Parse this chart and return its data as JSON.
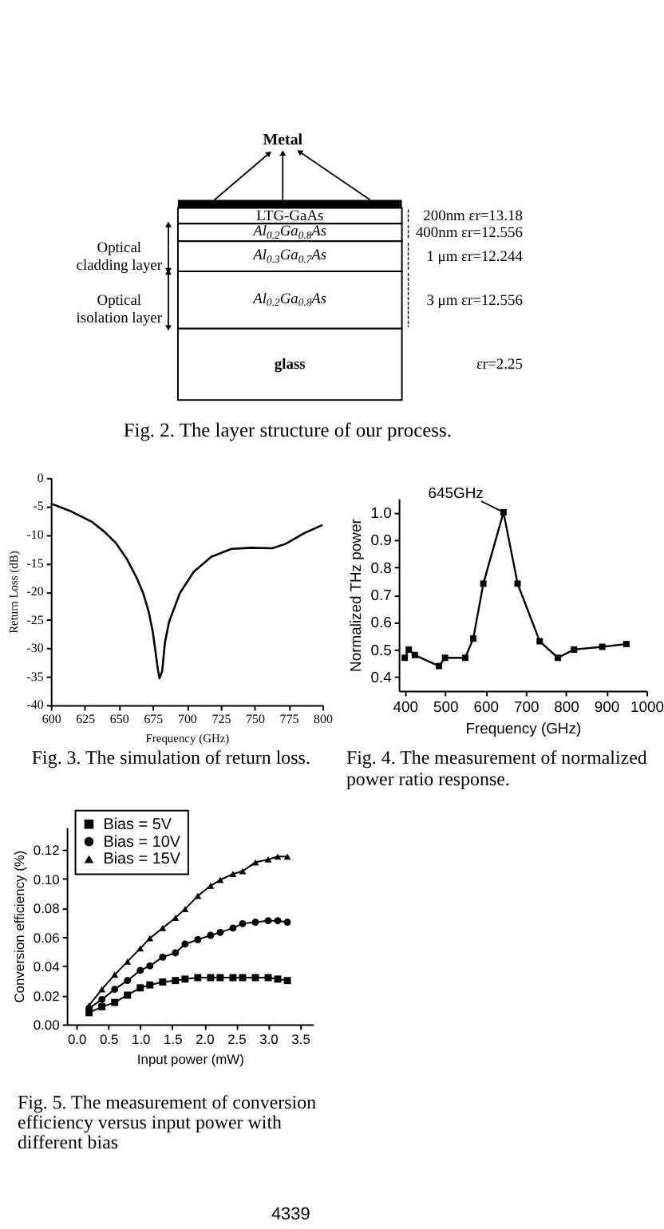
{
  "chart_data": [
    {
      "type": "other",
      "categories": [
        "Metal",
        "LTG-GaAs",
        "Al$_{0.2}$Ga$_{0.8}$As",
        "Al$_{0.3}$Ga$_{0.7}$As",
        "Al$_{0.2}$Ga$_{0.8}$As",
        "glass"
      ],
      "colors": [
        "#000000",
        "#ffffff",
        "#ffffff",
        "#ffffff",
        "#ffffff",
        "#ffffff"
      ],
      "value_labels": [
        null,
        "200nm  εr=13.18",
        "400nm  εr=12.556",
        "1 μm  εr=12.244",
        "3 μm  εr=12.556",
        "εr=2.25"
      ],
      "annotations": [
        "Optical cladding layer",
        "Optical isolation layer",
        "Fig. 2. The layer structure of our process."
      ]
    },
    {
      "type": "line",
      "xlabel": "Frequency (GHz)",
      "ylabel": "Return Loss (dB)",
      "x": [
        600,
        615,
        630,
        640,
        648,
        656,
        663,
        668,
        672,
        675,
        677,
        679,
        680,
        682,
        684,
        687,
        695,
        705,
        718,
        733,
        748,
        763,
        773,
        786,
        800
      ],
      "series": [
        {
          "color": "#000000",
          "values": [
            -4.5,
            -5.9,
            -7.7,
            -9.6,
            -11.5,
            -14.3,
            -17.5,
            -20.3,
            -23.5,
            -27.0,
            -30.5,
            -34.0,
            -35.3,
            -34.0,
            -29.0,
            -25.4,
            -20.3,
            -16.6,
            -13.9,
            -12.5,
            -12.3,
            -12.4,
            -11.6,
            -9.8,
            -8.3
          ]
        }
      ],
      "xlim": [
        600,
        800
      ],
      "xticks": [
        600,
        625,
        650,
        675,
        700,
        725,
        750,
        775,
        800
      ],
      "ylim": [
        -40,
        0
      ],
      "yticks": [
        0,
        -5,
        -10,
        -15,
        -20,
        -25,
        -30,
        -35,
        -40
      ],
      "annotations": [
        "Fig. 3. The simulation of return loss."
      ]
    },
    {
      "type": "line",
      "marker": "square",
      "xlabel": "Frequency (GHz)",
      "ylabel": "Normalized THz power",
      "x": [
        400,
        410,
        425,
        485,
        500,
        550,
        570,
        595,
        645,
        680,
        735,
        780,
        820,
        890,
        950
      ],
      "series": [
        {
          "color": "#000000",
          "values": [
            0.47,
            0.5,
            0.48,
            0.44,
            0.47,
            0.47,
            0.54,
            0.74,
            1.0,
            0.74,
            0.53,
            0.47,
            0.5,
            0.51,
            0.52
          ]
        }
      ],
      "xlim": [
        385,
        1000
      ],
      "xticks": [
        400,
        500,
        600,
        700,
        800,
        900,
        1000
      ],
      "ylim": [
        0.35,
        1.05
      ],
      "yticks": [
        0.4,
        0.5,
        0.6,
        0.7,
        0.8,
        0.9,
        {
          "value": 1,
          "label": "1.0"
        }
      ],
      "annotations": [
        {
          "text": "645GHz",
          "x": 645,
          "y": 1.0
        },
        "Fig. 4. The measurement of normalized power ratio response."
      ]
    },
    {
      "type": "line",
      "xlabel": "Input power (mW)",
      "ylabel": "Conversion efficiency (%)",
      "legend": "top left",
      "x": [
        0.2,
        0.4,
        0.6,
        0.8,
        1.0,
        1.15,
        1.35,
        1.55,
        1.7,
        1.9,
        2.1,
        2.25,
        2.45,
        2.6,
        2.8,
        3.0,
        3.15,
        3.3
      ],
      "series": [
        {
          "name": "Bias = 5V",
          "color": "#000000",
          "marker": "square",
          "values": [
            0.008,
            0.012,
            0.015,
            0.02,
            0.025,
            0.027,
            0.029,
            0.03,
            0.031,
            0.032,
            0.032,
            0.032,
            0.032,
            0.032,
            0.032,
            0.032,
            0.031,
            0.03
          ]
        },
        {
          "name": "Bias = 10V",
          "color": "#000000",
          "marker": "circle",
          "values": [
            0.011,
            0.017,
            0.024,
            0.03,
            0.037,
            0.04,
            0.046,
            0.049,
            0.055,
            0.058,
            0.061,
            0.063,
            0.066,
            0.069,
            0.07,
            0.071,
            0.071,
            0.07
          ]
        },
        {
          "name": "Bias = 15V",
          "color": "#000000",
          "marker": "triangle",
          "values": [
            0.013,
            0.024,
            0.034,
            0.043,
            0.052,
            0.059,
            0.066,
            0.073,
            0.079,
            0.088,
            0.095,
            0.099,
            0.103,
            0.105,
            0.111,
            0.113,
            0.115,
            0.115
          ]
        }
      ],
      "xlim": [
        -0.15,
        3.7
      ],
      "xticks": [
        {
          "value": 0,
          "label": "0.0"
        },
        0.5,
        {
          "value": 1,
          "label": "1.0"
        },
        1.5,
        {
          "value": 2,
          "label": "2.0"
        },
        2.5,
        {
          "value": 3,
          "label": "3.0"
        },
        3.5
      ],
      "ylim": [
        0,
        0.135
      ],
      "yticks": [
        {
          "value": 0,
          "label": "0.00"
        },
        0.02,
        0.04,
        0.06,
        0.08,
        {
          "value": 0.1,
          "label": "0.10"
        },
        0.12
      ],
      "annotations": [
        "Fig. 5. The measurement of conversion efficiency versus input power with different bias",
        "4339"
      ]
    }
  ]
}
